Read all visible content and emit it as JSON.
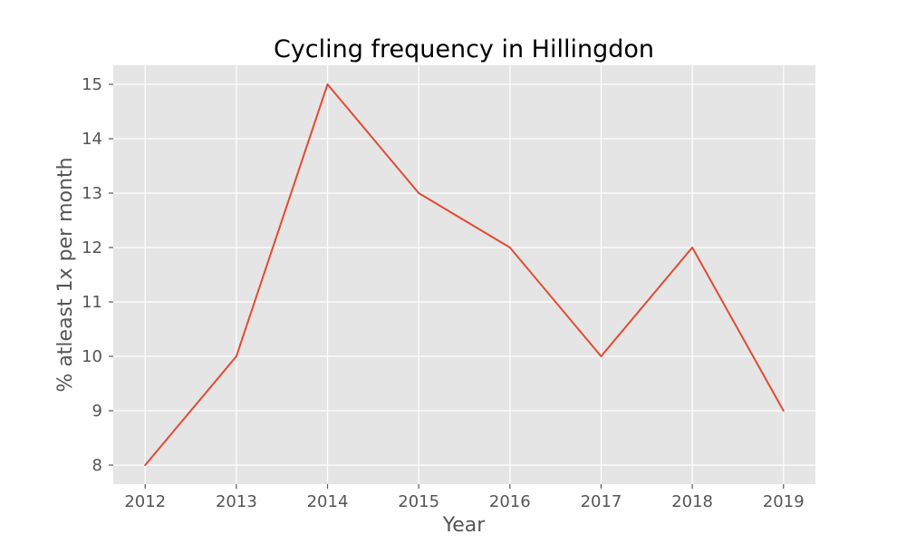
{
  "chart_data": {
    "type": "line",
    "title": "Cycling frequency in Hillingdon",
    "xlabel": "Year",
    "ylabel": "% atleast 1x per month",
    "x": [
      2012,
      2013,
      2014,
      2015,
      2016,
      2017,
      2018,
      2019
    ],
    "series": [
      {
        "values": [
          8,
          10,
          15,
          13,
          12,
          10,
          12,
          9
        ]
      }
    ],
    "xlim": [
      2011.65,
      2019.35
    ],
    "ylim": [
      7.65,
      15.35
    ],
    "x_ticks": [
      "2012",
      "2013",
      "2014",
      "2015",
      "2016",
      "2017",
      "2018",
      "2019"
    ],
    "y_ticks": [
      "8",
      "9",
      "10",
      "11",
      "12",
      "13",
      "14",
      "15"
    ],
    "grid": true,
    "legend": "none",
    "colors": {
      "line": "#E24A33",
      "plot_background": "#E5E5E5",
      "grid": "#FFFFFF",
      "tick_text": "#555555",
      "title_text": "#000000"
    }
  }
}
